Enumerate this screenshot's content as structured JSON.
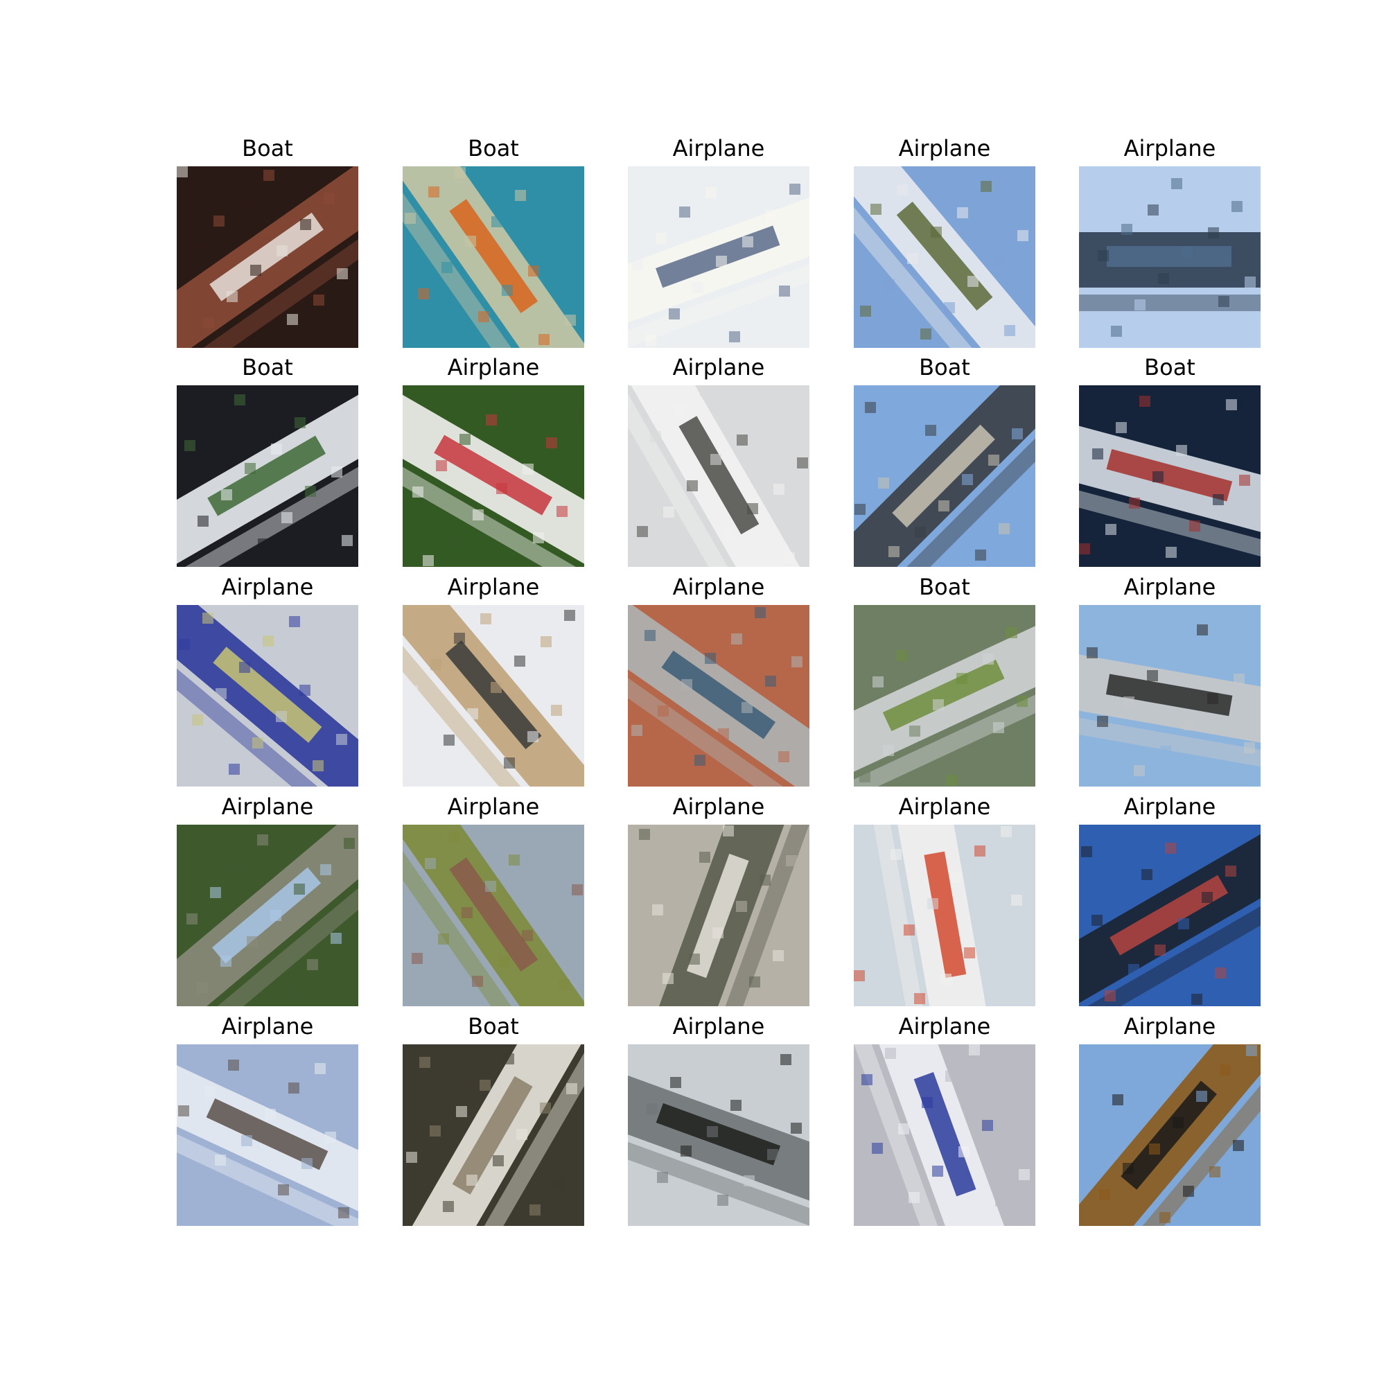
{
  "figure": {
    "tiles": [
      {
        "title": "Boat",
        "scene": "boat-hull-diagonal",
        "colors": {
          "bg": "#2a1a16",
          "main": "#8a4a36",
          "accent": "#e6e1da"
        }
      },
      {
        "title": "Boat",
        "scene": "boat-topdown-turquoise",
        "colors": {
          "bg": "#2f8fa6",
          "main": "#c9c6a4",
          "accent": "#d8641f"
        }
      },
      {
        "title": "Airplane",
        "scene": "white-plane-closeup",
        "colors": {
          "bg": "#eceff1",
          "main": "#f7f6f1",
          "accent": "#5b6b8a"
        }
      },
      {
        "title": "Airplane",
        "scene": "airliner-ground-tilted",
        "colors": {
          "bg": "#7ea3d6",
          "main": "#e8eaee",
          "accent": "#5d6a3a"
        }
      },
      {
        "title": "Airplane",
        "scene": "jet-fighter-sky",
        "colors": {
          "bg": "#b6cdec",
          "main": "#2f3f52",
          "accent": "#4f6b8c"
        }
      },
      {
        "title": "Boat",
        "scene": "white-boat-angled",
        "colors": {
          "bg": "#1b1d22",
          "main": "#e9ecf0",
          "accent": "#3e6a36"
        }
      },
      {
        "title": "Airplane",
        "scene": "model-plane-grass",
        "colors": {
          "bg": "#345a24",
          "main": "#f1f1ef",
          "accent": "#c8363d"
        }
      },
      {
        "title": "Airplane",
        "scene": "engine-closeup",
        "colors": {
          "bg": "#d9dadb",
          "main": "#f2f2f2",
          "accent": "#4b4b46"
        }
      },
      {
        "title": "Boat",
        "scene": "tall-ship-sky",
        "colors": {
          "bg": "#7fa9dc",
          "main": "#3b3e45",
          "accent": "#c9c2b1"
        }
      },
      {
        "title": "Boat",
        "scene": "speedboat-wake",
        "colors": {
          "bg": "#15243a",
          "main": "#d7dde4",
          "accent": "#a3302c"
        }
      },
      {
        "title": "Airplane",
        "scene": "cabin-interior",
        "colors": {
          "bg": "#c7ccd4",
          "main": "#2f3c9c",
          "accent": "#c9c474"
        }
      },
      {
        "title": "Airplane",
        "scene": "runway-diagonal",
        "colors": {
          "bg": "#e9ebee",
          "main": "#c0a47a",
          "accent": "#3a3a3a"
        }
      },
      {
        "title": "Airplane",
        "scene": "plane-brick-rooftop",
        "colors": {
          "bg": "#b6674a",
          "main": "#aeb2b2",
          "accent": "#3b5c78"
        }
      },
      {
        "title": "Boat",
        "scene": "boat-water-green",
        "colors": {
          "bg": "#6f7f64",
          "main": "#cfd3d4",
          "accent": "#6e8e3d"
        }
      },
      {
        "title": "Airplane",
        "scene": "transport-plane-sky",
        "colors": {
          "bg": "#8db4dc",
          "main": "#c7c8c9",
          "accent": "#2a2a2a"
        }
      },
      {
        "title": "Airplane",
        "scene": "plane-trees-tilted",
        "colors": {
          "bg": "#3e5a2d",
          "main": "#8a8a7a",
          "accent": "#a9c6e6"
        }
      },
      {
        "title": "Airplane",
        "scene": "biplane-field",
        "colors": {
          "bg": "#9aa8b6",
          "main": "#7e8b3c",
          "accent": "#8b5a4c"
        }
      },
      {
        "title": "Airplane",
        "scene": "plane-cloudy-sky",
        "colors": {
          "bg": "#b6b1a6",
          "main": "#5b5e4f",
          "accent": "#e7e4dd"
        }
      },
      {
        "title": "Airplane",
        "scene": "aerobatic-jet-vertical",
        "colors": {
          "bg": "#cfd8df",
          "main": "#f0f0ee",
          "accent": "#d34a30"
        }
      },
      {
        "title": "Airplane",
        "scene": "jet-wings-closeup",
        "colors": {
          "bg": "#2f5fb0",
          "main": "#1b2230",
          "accent": "#b5443f"
        }
      },
      {
        "title": "Airplane",
        "scene": "formation-clouds",
        "colors": {
          "bg": "#9fb2d3",
          "main": "#e6ebf2",
          "accent": "#5a4f49"
        }
      },
      {
        "title": "Boat",
        "scene": "hull-closeup-dark",
        "colors": {
          "bg": "#3d3a2f",
          "main": "#e8e6dd",
          "accent": "#8b7f6a"
        }
      },
      {
        "title": "Airplane",
        "scene": "cockpit-view-clouds",
        "colors": {
          "bg": "#c9ced2",
          "main": "#6f7476",
          "accent": "#1d1f1c"
        }
      },
      {
        "title": "Airplane",
        "scene": "airliner-tarmac",
        "colors": {
          "bg": "#b9bac2",
          "main": "#eef0f4",
          "accent": "#2b3c9e"
        }
      },
      {
        "title": "Airplane",
        "scene": "orange-jet-sky",
        "colors": {
          "bg": "#7ea8d9",
          "main": "#8c5a1a",
          "accent": "#1a1a1a"
        }
      }
    ]
  }
}
